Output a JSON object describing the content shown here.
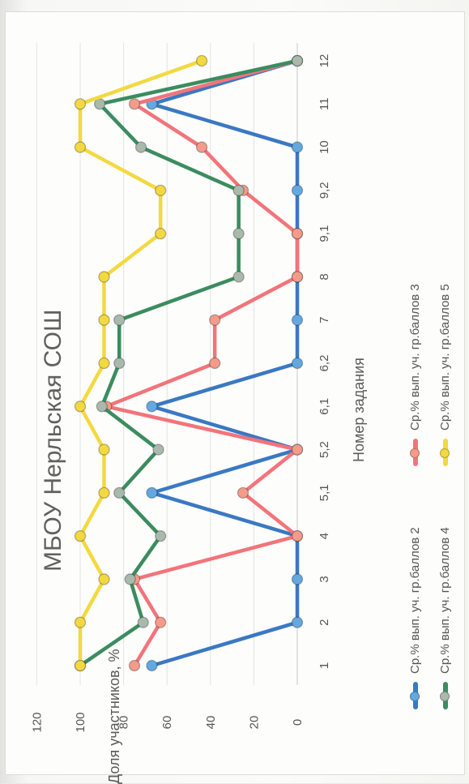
{
  "chart_data": {
    "type": "line",
    "title": "МБОУ Нерльская СОШ",
    "xlabel": "Номер задания",
    "ylabel": "Доля участников, %",
    "categories": [
      "1",
      "2",
      "3",
      "4",
      "5,1",
      "5,2",
      "6,1",
      "6,2",
      "7",
      "8",
      "9,1",
      "9,2",
      "10",
      "11",
      "12"
    ],
    "ylim": [
      0,
      120
    ],
    "yticks": [
      0,
      20,
      40,
      60,
      80,
      100,
      120
    ],
    "grid": true,
    "legend_position": "bottom",
    "orientation": "rotated 90° counter-clockwise",
    "series": [
      {
        "name": "Ср.% вып. уч. гр.баллов 2",
        "color": "#3a78c2",
        "marker": "#63a9e0",
        "values": [
          67,
          0,
          0,
          0,
          67,
          0,
          67,
          0,
          0,
          0,
          0,
          0,
          0,
          67,
          0
        ]
      },
      {
        "name": "Ср.% вып. уч. гр.баллов 3",
        "color": "#f2747a",
        "marker": "#f49b8a",
        "values": [
          75,
          63,
          75,
          0,
          25,
          0,
          88,
          38,
          38,
          0,
          0,
          25,
          44,
          75,
          0
        ]
      },
      {
        "name": "Ср.% вып. уч. гр.баллов 4",
        "color": "#3b8c5f",
        "marker": "#a9b9ac",
        "values": [
          100,
          71,
          77,
          63,
          82,
          64,
          90,
          82,
          82,
          27,
          27,
          27,
          72,
          91,
          0
        ]
      },
      {
        "name": "Ср.% вып. уч. гр.баллов 5",
        "color": "#f3d940",
        "marker": "#f3d940",
        "values": [
          100,
          100,
          89,
          100,
          89,
          89,
          100,
          89,
          89,
          89,
          63,
          63,
          100,
          100,
          44
        ]
      }
    ]
  }
}
